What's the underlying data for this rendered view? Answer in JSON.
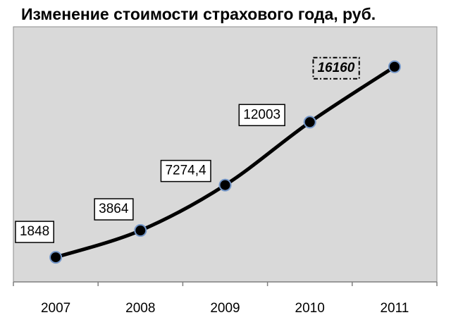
{
  "chart_data": {
    "type": "line",
    "title": "Изменение стоимости страхового года, руб.",
    "categories": [
      "2007",
      "2008",
      "2009",
      "2010",
      "2011"
    ],
    "values": [
      1848,
      3864,
      7274.4,
      12003,
      16160
    ],
    "value_labels": [
      "1848",
      "3864",
      "7274,4",
      "12003",
      "16160"
    ],
    "color": "#000000",
    "ylim": [
      0,
      18000
    ]
  }
}
